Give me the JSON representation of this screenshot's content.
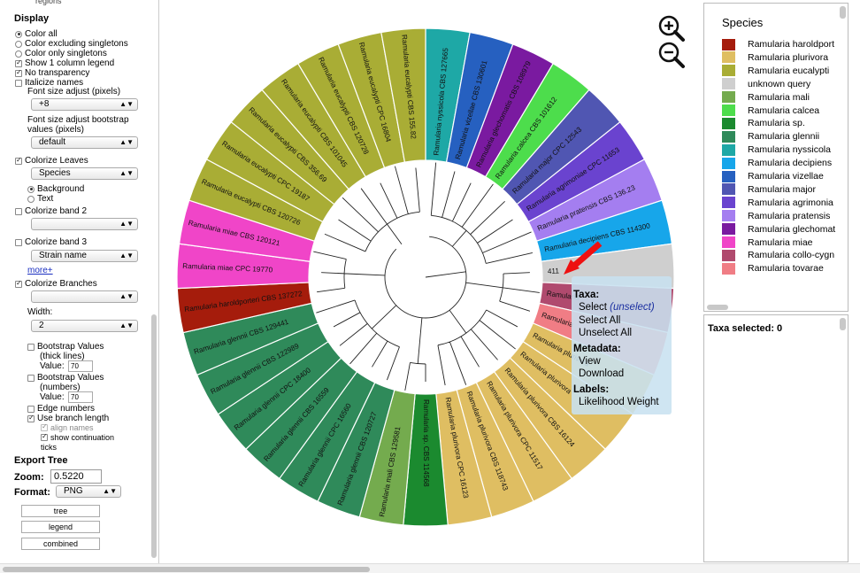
{
  "left": {
    "cut_label": "regions",
    "display_heading": "Display",
    "color_options": [
      "Color all",
      "Color excluding singletons",
      "Color only singletons"
    ],
    "show_column_legend": "Show 1 column legend",
    "no_transparency": "No transparency",
    "italicize_names": "Italicize names",
    "font_size_label": "Font size adjust (pixels)",
    "font_size_value": "+8",
    "bootstrap_font_label_1": "Font size adjust bootstrap",
    "bootstrap_font_label_2": "values (pixels)",
    "bootstrap_font_value": "default",
    "colorize_leaves": "Colorize Leaves",
    "leaves_select": "Species",
    "background": "Background",
    "text": "Text",
    "colorize_band2": "Colorize band 2",
    "band2_select": "",
    "colorize_band3": "Colorize band 3",
    "band3_select": "Strain name",
    "more_link": "more+",
    "colorize_branches": "Colorize Branches",
    "branches_select": "",
    "width_label": "Width:",
    "width_value": "2",
    "bootstrap_thick_1": "Bootstrap Values",
    "bootstrap_thick_2": "(thick lines)",
    "value_label": "Value:",
    "bootstrap_thick_value": "70",
    "bootstrap_num_1": "Bootstrap Values",
    "bootstrap_num_2": "(numbers)",
    "bootstrap_num_value": "70",
    "edge_numbers": "Edge numbers",
    "use_branch_length": "Use branch length",
    "align_names": "align names",
    "show_continuation_1": "show continuation",
    "show_continuation_2": "ticks",
    "export_heading": "Export Tree",
    "zoom_label": "Zoom:",
    "zoom_value": "0.5220",
    "format_label": "Format:",
    "format_value": "PNG",
    "buttons": [
      "tree",
      "legend",
      "combined"
    ]
  },
  "legend": {
    "title": "Species",
    "items": [
      {
        "label": "Ramularia haroldport",
        "color": "#a51c0c"
      },
      {
        "label": "Ramularia plurivora",
        "color": "#dfbe62"
      },
      {
        "label": "Ramularia eucalypti",
        "color": "#a9ad35"
      },
      {
        "label": "unknown query",
        "color": "#cfcfcf"
      },
      {
        "label": "Ramularia mali",
        "color": "#74ab4e"
      },
      {
        "label": "Ramularia calcea",
        "color": "#4ddd4c"
      },
      {
        "label": "Ramularia sp.",
        "color": "#1b8a2f"
      },
      {
        "label": "Ramularia glennii",
        "color": "#2f8a5a"
      },
      {
        "label": "Ramularia nyssicola",
        "color": "#1ea8a6"
      },
      {
        "label": "Ramularia decipiens",
        "color": "#17a6ea"
      },
      {
        "label": "Ramularia vizellae",
        "color": "#2660c0"
      },
      {
        "label": "Ramularia major",
        "color": "#5056b2"
      },
      {
        "label": "Ramularia agrimonia",
        "color": "#6a43cf"
      },
      {
        "label": "Ramularia pratensis",
        "color": "#a47ef0"
      },
      {
        "label": "Ramularia glechomat",
        "color": "#7a1aa0"
      },
      {
        "label": "Ramularia miae",
        "color": "#f045c8"
      },
      {
        "label": "Ramularia collo-cygn",
        "color": "#b04a6e"
      },
      {
        "label": "Ramularia tovarae",
        "color": "#f07d85"
      }
    ]
  },
  "tree": {
    "leaves": [
      {
        "label": "Ramularia nyssicola CBS 127665",
        "color": "#1ea8a6"
      },
      {
        "label": "Ramularia vizellae CBS 130601",
        "color": "#2660c0"
      },
      {
        "label": "Ramularia glechomatis CBS 108979",
        "color": "#7a1aa0"
      },
      {
        "label": "Ramularia calcea CBS 101612",
        "color": "#4ddd4c"
      },
      {
        "label": "Ramularia major CPC 12543",
        "color": "#5056b2"
      },
      {
        "label": "Ramularia agrimoniae CPC 11653",
        "color": "#6a43cf"
      },
      {
        "label": "Ramularia pratensis CBS 136.23",
        "color": "#a47ef0"
      },
      {
        "label": "Ramularia decipiens CBS 114300",
        "color": "#17a6ea"
      },
      {
        "label": "411",
        "color": "#cfcfcf"
      },
      {
        "label": "Ramularia",
        "color": "#b04a6e"
      },
      {
        "label": "Ramularia",
        "color": "#f07d85"
      },
      {
        "label": "Ramularia plurivora",
        "color": "#dfbe62"
      },
      {
        "label": "Ramularia plurivora",
        "color": "#dfbe62"
      },
      {
        "label": "Ramularia plurivora CBS 16124",
        "color": "#dfbe62"
      },
      {
        "label": "Ramularia plurivora CPC 11517",
        "color": "#dfbe62"
      },
      {
        "label": "Ramularia plurivora CBS 118743",
        "color": "#dfbe62"
      },
      {
        "label": "Ramularia plurivora CPC 16123",
        "color": "#dfbe62"
      },
      {
        "label": "Ramularia sp. CBS 114568",
        "color": "#1b8a2f"
      },
      {
        "label": "Ramularia mali CBS 129581",
        "color": "#74ab4e"
      },
      {
        "label": "Ramularia glennii CBS 120727",
        "color": "#2f8a5a"
      },
      {
        "label": "Ramularia glennii CPC 16560",
        "color": "#2f8a5a"
      },
      {
        "label": "Ramularia glennii CBS 16559",
        "color": "#2f8a5a"
      },
      {
        "label": "Ramularia glennii CPC 18400",
        "color": "#2f8a5a"
      },
      {
        "label": "Ramularia glennii CBS 122989",
        "color": "#2f8a5a"
      },
      {
        "label": "Ramularia glennii CBS 129441",
        "color": "#2f8a5a"
      },
      {
        "label": "Ramularia haroldporteri CBS 137272",
        "color": "#a51c0c"
      },
      {
        "label": "Ramularia miae CPC 19770",
        "color": "#f045c8"
      },
      {
        "label": "Ramularia miae CBS 120121",
        "color": "#f045c8"
      },
      {
        "label": "Ramularia eucalypti CBS 120726",
        "color": "#a9ad35"
      },
      {
        "label": "Ramularia eucalypti CPC 19187",
        "color": "#a9ad35"
      },
      {
        "label": "Ramularia eucalypti CBS 356.69",
        "color": "#a9ad35"
      },
      {
        "label": "Ramularia eucalypti CBS 101045",
        "color": "#a9ad35"
      },
      {
        "label": "Ramularia eucalypti CBS 120728",
        "color": "#a9ad35"
      },
      {
        "label": "Ramularia eucalypti CPC 16804",
        "color": "#a9ad35"
      },
      {
        "label": "Ramularia eucalypti CBS 155.82",
        "color": "#a9ad35"
      }
    ]
  },
  "context_menu": {
    "taxa_heading": "Taxa:",
    "select": "Select",
    "unselect": "(unselect)",
    "select_all": "Select All",
    "unselect_all": "Unselect All",
    "metadata_heading": "Metadata:",
    "view": "View",
    "download": "Download",
    "labels_heading": "Labels:",
    "likelihood": "Likelihood Weight"
  },
  "selected_panel": {
    "label": "Taxa selected: 0"
  },
  "colors": {
    "arrow": "#ee1111",
    "menu_bg": "#c8e1f0"
  }
}
